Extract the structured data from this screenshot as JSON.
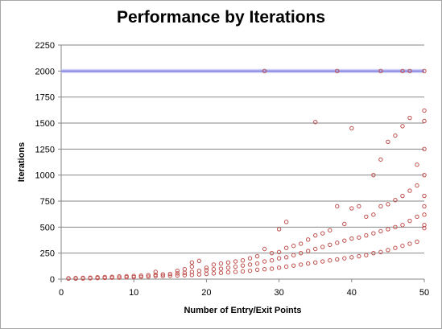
{
  "chart_data": {
    "type": "scatter",
    "title": "Performance by Iterations",
    "xlabel": "Number of Entry/Exit Points",
    "ylabel": "Iterations",
    "xlim": [
      0,
      50
    ],
    "ylim": [
      0,
      2250
    ],
    "xticks": [
      0,
      10,
      20,
      30,
      40,
      50
    ],
    "yticks": [
      0,
      250,
      500,
      750,
      1000,
      1250,
      1500,
      1750,
      2000,
      2250
    ],
    "grid": {
      "y": true,
      "x": false
    },
    "reference_line": {
      "y": 2000,
      "color": "#7a7ae0"
    },
    "marker_color": "#c0504d",
    "points": [
      [
        1,
        5
      ],
      [
        1,
        8
      ],
      [
        2,
        5
      ],
      [
        2,
        10
      ],
      [
        3,
        6
      ],
      [
        3,
        12
      ],
      [
        4,
        8
      ],
      [
        4,
        14
      ],
      [
        5,
        10
      ],
      [
        5,
        18
      ],
      [
        6,
        12
      ],
      [
        6,
        20
      ],
      [
        7,
        14
      ],
      [
        7,
        22
      ],
      [
        8,
        15
      ],
      [
        8,
        26
      ],
      [
        9,
        18
      ],
      [
        9,
        28
      ],
      [
        10,
        20
      ],
      [
        10,
        30
      ],
      [
        11,
        22
      ],
      [
        11,
        34
      ],
      [
        12,
        24
      ],
      [
        12,
        38
      ],
      [
        13,
        28
      ],
      [
        13,
        42
      ],
      [
        13,
        70
      ],
      [
        14,
        30
      ],
      [
        14,
        46
      ],
      [
        15,
        32
      ],
      [
        15,
        50
      ],
      [
        16,
        35
      ],
      [
        16,
        55
      ],
      [
        16,
        80
      ],
      [
        17,
        38
      ],
      [
        17,
        60
      ],
      [
        17,
        95
      ],
      [
        18,
        40
      ],
      [
        18,
        70
      ],
      [
        18,
        120
      ],
      [
        18,
        160
      ],
      [
        19,
        45
      ],
      [
        19,
        80
      ],
      [
        19,
        175
      ],
      [
        20,
        50
      ],
      [
        20,
        85
      ],
      [
        20,
        110
      ],
      [
        21,
        55
      ],
      [
        21,
        95
      ],
      [
        21,
        140
      ],
      [
        22,
        60
      ],
      [
        22,
        100
      ],
      [
        22,
        150
      ],
      [
        23,
        65
      ],
      [
        23,
        110
      ],
      [
        23,
        160
      ],
      [
        24,
        70
      ],
      [
        24,
        120
      ],
      [
        24,
        170
      ],
      [
        25,
        75
      ],
      [
        25,
        130
      ],
      [
        25,
        180
      ],
      [
        26,
        80
      ],
      [
        26,
        140
      ],
      [
        26,
        200
      ],
      [
        27,
        90
      ],
      [
        27,
        150
      ],
      [
        27,
        220
      ],
      [
        28,
        95
      ],
      [
        28,
        170
      ],
      [
        28,
        290
      ],
      [
        28,
        2000
      ],
      [
        29,
        100
      ],
      [
        29,
        180
      ],
      [
        29,
        250
      ],
      [
        30,
        110
      ],
      [
        30,
        200
      ],
      [
        30,
        260
      ],
      [
        30,
        480
      ],
      [
        31,
        120
      ],
      [
        31,
        210
      ],
      [
        31,
        300
      ],
      [
        31,
        550
      ],
      [
        32,
        130
      ],
      [
        32,
        230
      ],
      [
        32,
        320
      ],
      [
        33,
        140
      ],
      [
        33,
        250
      ],
      [
        33,
        340
      ],
      [
        34,
        150
      ],
      [
        34,
        270
      ],
      [
        34,
        380
      ],
      [
        35,
        160
      ],
      [
        35,
        290
      ],
      [
        35,
        420
      ],
      [
        35,
        1510
      ],
      [
        36,
        170
      ],
      [
        36,
        310
      ],
      [
        36,
        440
      ],
      [
        37,
        180
      ],
      [
        37,
        330
      ],
      [
        37,
        470
      ],
      [
        38,
        190
      ],
      [
        38,
        350
      ],
      [
        38,
        700
      ],
      [
        38,
        2000
      ],
      [
        39,
        200
      ],
      [
        39,
        370
      ],
      [
        39,
        530
      ],
      [
        40,
        210
      ],
      [
        40,
        390
      ],
      [
        40,
        680
      ],
      [
        40,
        1450
      ],
      [
        41,
        220
      ],
      [
        41,
        400
      ],
      [
        41,
        700
      ],
      [
        42,
        230
      ],
      [
        42,
        420
      ],
      [
        42,
        600
      ],
      [
        43,
        250
      ],
      [
        43,
        440
      ],
      [
        43,
        620
      ],
      [
        43,
        1000
      ],
      [
        44,
        260
      ],
      [
        44,
        460
      ],
      [
        44,
        700
      ],
      [
        44,
        1150
      ],
      [
        44,
        2000
      ],
      [
        45,
        280
      ],
      [
        45,
        480
      ],
      [
        45,
        720
      ],
      [
        45,
        1320
      ],
      [
        46,
        300
      ],
      [
        46,
        500
      ],
      [
        46,
        760
      ],
      [
        46,
        1380
      ],
      [
        47,
        320
      ],
      [
        47,
        520
      ],
      [
        47,
        800
      ],
      [
        47,
        1470
      ],
      [
        47,
        2000
      ],
      [
        48,
        340
      ],
      [
        48,
        560
      ],
      [
        48,
        850
      ],
      [
        48,
        1550
      ],
      [
        48,
        2000
      ],
      [
        49,
        360
      ],
      [
        49,
        600
      ],
      [
        49,
        900
      ],
      [
        49,
        1100
      ],
      [
        50,
        490
      ],
      [
        50,
        520
      ],
      [
        50,
        620
      ],
      [
        50,
        700
      ],
      [
        50,
        800
      ],
      [
        50,
        1000
      ],
      [
        50,
        1250
      ],
      [
        50,
        1520
      ],
      [
        50,
        1620
      ],
      [
        50,
        2000
      ]
    ]
  }
}
